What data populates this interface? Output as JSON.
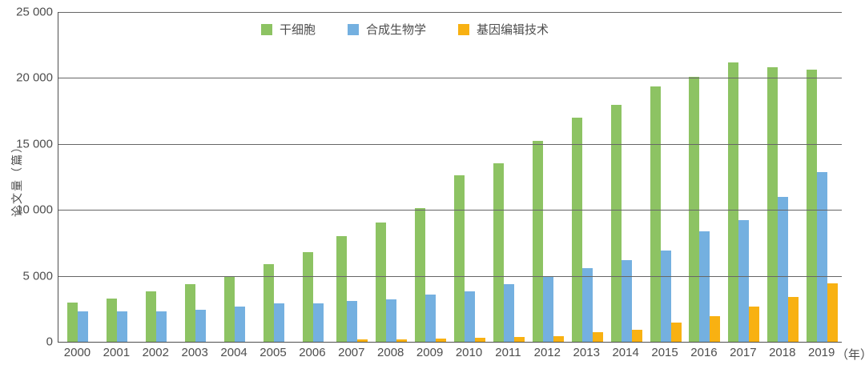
{
  "chart": {
    "y_axis_title": "论文量（篇）",
    "x_axis_unit": "（年）",
    "y_ticks": [
      "0",
      "5 000",
      "10 000",
      "15 000",
      "20 000",
      "25 000"
    ],
    "legend": [
      {
        "key": "stem-cell",
        "label": "干细胞",
        "color": "#8dc363"
      },
      {
        "key": "synthetic-biology",
        "label": "合成生物学",
        "color": "#74b0e0"
      },
      {
        "key": "gene-editing",
        "label": "基因编辑技术",
        "color": "#f8b112"
      }
    ],
    "colors": {
      "gridline": "#666666",
      "axis": "#4f4f4f",
      "text": "#4d4d4d"
    }
  },
  "chart_data": {
    "type": "bar",
    "title": "",
    "xlabel": "年",
    "ylabel": "论文量（篇）",
    "ylim": [
      0,
      25000
    ],
    "grid": true,
    "legend_position": "top",
    "categories": [
      2000,
      2001,
      2002,
      2003,
      2004,
      2005,
      2006,
      2007,
      2008,
      2009,
      2010,
      2011,
      2012,
      2013,
      2014,
      2015,
      2016,
      2017,
      2018,
      2019
    ],
    "series": [
      {
        "key": "stem-cell",
        "name": "干细胞",
        "color": "#8dc363",
        "values": [
          3000,
          3250,
          3800,
          4350,
          5000,
          5900,
          6800,
          8000,
          9050,
          10150,
          12600,
          13550,
          15250,
          17000,
          17950,
          19350,
          20100,
          21200,
          20800,
          20650
        ]
      },
      {
        "key": "synthetic-biology",
        "name": "合成生物学",
        "color": "#74b0e0",
        "values": [
          2300,
          2300,
          2300,
          2400,
          2650,
          2900,
          2900,
          3100,
          3200,
          3600,
          3800,
          4350,
          4900,
          5600,
          6200,
          6900,
          8400,
          9200,
          11000,
          12850
        ]
      },
      {
        "key": "gene-editing",
        "name": "基因编辑技术",
        "color": "#f8b112",
        "values": [
          null,
          null,
          null,
          null,
          null,
          null,
          null,
          200,
          200,
          250,
          300,
          350,
          450,
          700,
          900,
          1450,
          1950,
          2700,
          3400,
          4450
        ]
      }
    ]
  }
}
